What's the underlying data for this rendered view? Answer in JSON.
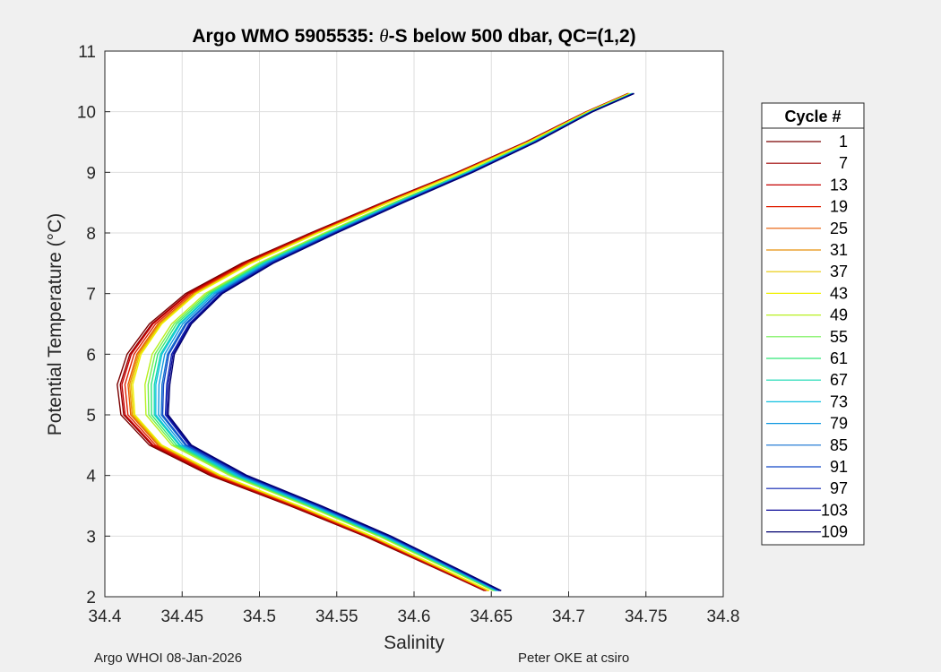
{
  "chart_data": {
    "type": "line",
    "title_prefix": "Argo WMO 5905535: ",
    "title_theta": "θ",
    "title_suffix": "-S below 500 dbar,  QC=(1,2)",
    "xlabel": "Salinity",
    "ylabel": "Potential Temperature (°C)",
    "xlim": [
      34.4,
      34.8
    ],
    "ylim": [
      2,
      11
    ],
    "xticks": [
      "34.4",
      "34.45",
      "34.5",
      "34.55",
      "34.6",
      "34.65",
      "34.7",
      "34.75",
      "34.8"
    ],
    "yticks": [
      "2",
      "3",
      "4",
      "5",
      "6",
      "7",
      "8",
      "9",
      "10",
      "11"
    ],
    "grid": true,
    "legend_placement": "outside-right",
    "legend_title": "Cycle #",
    "legend_entries": [
      {
        "label": "1",
        "color": "#7a0000"
      },
      {
        "label": "7",
        "color": "#9e0000"
      },
      {
        "label": "13",
        "color": "#c40000"
      },
      {
        "label": "19",
        "color": "#e01e00"
      },
      {
        "label": "25",
        "color": "#e85a00"
      },
      {
        "label": "31",
        "color": "#e8900a"
      },
      {
        "label": "37",
        "color": "#e8c800"
      },
      {
        "label": "43",
        "color": "#f0f000"
      },
      {
        "label": "49",
        "color": "#b8f020"
      },
      {
        "label": "55",
        "color": "#70f050"
      },
      {
        "label": "61",
        "color": "#30e878"
      },
      {
        "label": "67",
        "color": "#10d8b0"
      },
      {
        "label": "73",
        "color": "#10c0e0"
      },
      {
        "label": "79",
        "color": "#1098e0"
      },
      {
        "label": "85",
        "color": "#1070d0"
      },
      {
        "label": "91",
        "color": "#1048c8"
      },
      {
        "label": "97",
        "color": "#0a20b0"
      },
      {
        "label": "103",
        "color": "#0a0898"
      },
      {
        "label": "109",
        "color": "#000070"
      }
    ],
    "series_offsets": [
      -0.014,
      -0.012,
      -0.011,
      -0.009,
      -0.007,
      -0.006,
      -0.005,
      -0.004,
      0.004,
      0.006,
      0.008,
      0.01,
      0.011,
      0.013,
      0.015,
      0.016,
      0.018,
      0.019,
      0.02
    ],
    "profile": {
      "theta": [
        2.1,
        2.5,
        3.0,
        3.5,
        4.0,
        4.5,
        5.0,
        5.5,
        6.0,
        6.5,
        7.0,
        7.5,
        8.0,
        8.5,
        9.0,
        9.5,
        10.0,
        10.3
      ],
      "salinity": [
        34.65,
        34.617,
        34.575,
        34.528,
        34.478,
        34.44,
        34.423,
        34.422,
        34.427,
        34.44,
        34.462,
        34.497,
        34.54,
        34.585,
        34.632,
        34.675,
        34.713,
        34.74
      ]
    }
  },
  "footer": {
    "left": "Argo WHOI 08-Jan-2026",
    "right": "Peter OKE at csiro"
  }
}
